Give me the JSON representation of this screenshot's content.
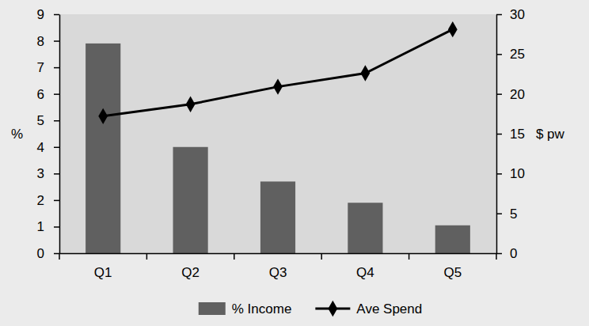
{
  "chart_data": {
    "type": "bar",
    "categories": [
      "Q1",
      "Q2",
      "Q3",
      "Q4",
      "Q5"
    ],
    "series": [
      {
        "name": "% Income",
        "type": "bar",
        "color": "#606060",
        "values": [
          7.9,
          4.0,
          2.7,
          1.9,
          1.05
        ]
      },
      {
        "name": "Ave Spend",
        "type": "line",
        "axis": "y2",
        "color": "#000000",
        "marker": "diamond",
        "values": [
          17.2,
          18.7,
          20.9,
          22.6,
          28.1
        ]
      }
    ],
    "y_label": "%",
    "y2_label": "$ pw",
    "ylim": [
      0,
      9
    ],
    "yticks": [
      0,
      1,
      2,
      3,
      4,
      5,
      6,
      7,
      8,
      9
    ],
    "y2lim": [
      0,
      30
    ],
    "y2ticks": [
      0,
      5,
      10,
      15,
      20,
      25,
      30
    ],
    "legend": "bottom"
  }
}
